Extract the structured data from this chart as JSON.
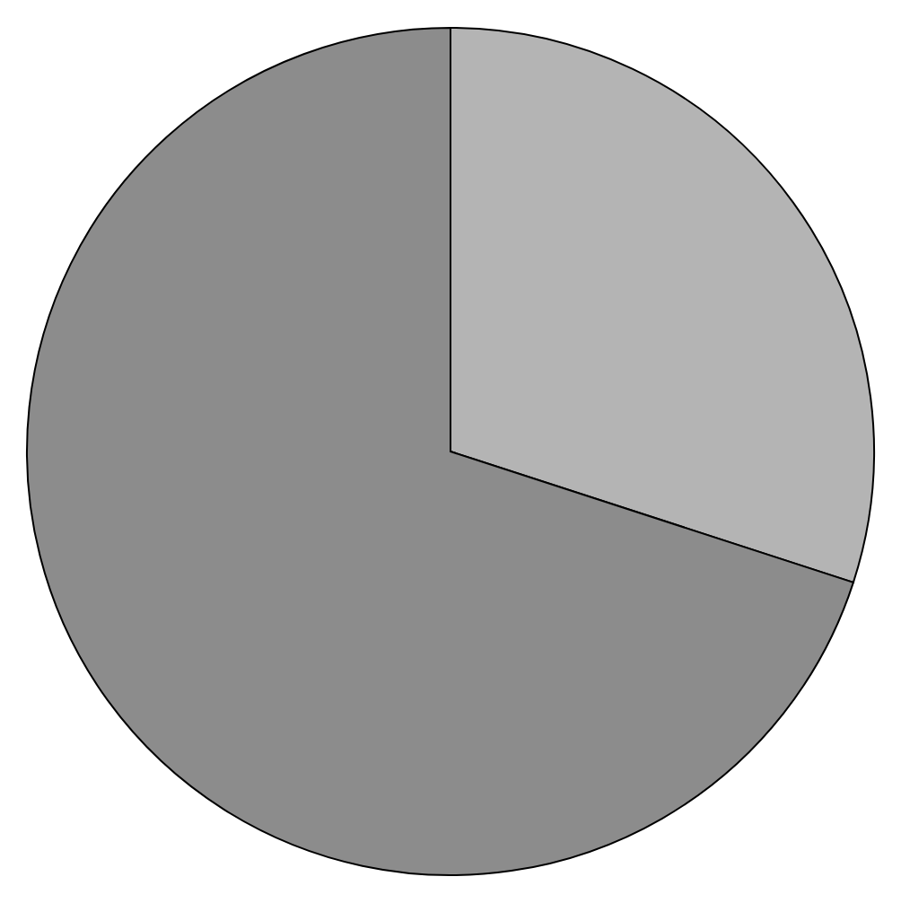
{
  "chart_data": {
    "type": "pie",
    "categories": [
      null,
      null
    ],
    "values": [
      30,
      70
    ],
    "colors": [
      "#b4b4b4",
      "#8c8c8c"
    ]
  }
}
